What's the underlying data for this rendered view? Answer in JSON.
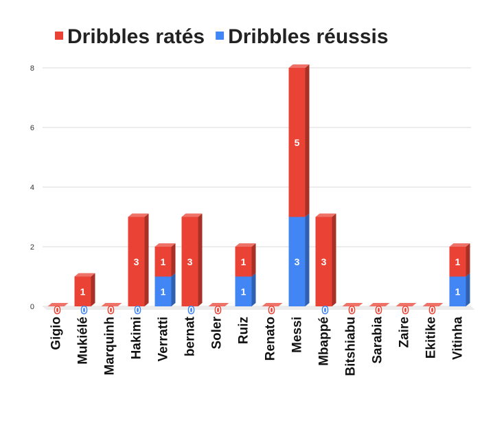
{
  "chart_data": {
    "type": "bar",
    "stacked": true,
    "three_d": true,
    "categories": [
      "Gigio",
      "Mukiélé",
      "Marquinh",
      "Hakimi",
      "Verratti",
      "bernat",
      "Soler",
      "Ruiz",
      "Renato",
      "Messi",
      "Mbappé",
      "Bitshiabu",
      "Sarabia",
      "Zaire",
      "Ekitike",
      "Vitinha"
    ],
    "series": [
      {
        "name": "Dribbles réussis",
        "color": "#4285f4",
        "values": [
          0,
          0,
          0,
          0,
          1,
          0,
          0,
          1,
          0,
          3,
          0,
          0,
          0,
          0,
          0,
          1
        ]
      },
      {
        "name": "Dribbles ratés",
        "color": "#ea4335",
        "values": [
          0,
          1,
          0,
          3,
          1,
          3,
          0,
          1,
          0,
          5,
          3,
          0,
          0,
          0,
          0,
          1
        ]
      }
    ],
    "legend_order": [
      "Dribbles ratés",
      "Dribbles réussis"
    ],
    "legend_position": "top",
    "y_ticks": [
      "0",
      "2",
      "4",
      "6",
      "8"
    ],
    "ylim": [
      0,
      8
    ],
    "grid": true,
    "title": "",
    "xlabel": "",
    "ylabel": ""
  }
}
